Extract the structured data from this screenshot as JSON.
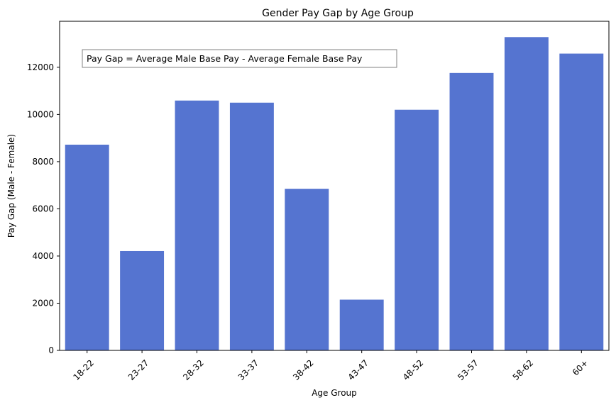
{
  "chart_data": {
    "type": "bar",
    "title": "Gender Pay Gap by Age Group",
    "xlabel": "Age Group",
    "ylabel": "Pay Gap (Male - Female)",
    "categories": [
      "18-22",
      "23-27",
      "28-32",
      "33-37",
      "38-42",
      "43-47",
      "48-52",
      "53-57",
      "58-62",
      "60+"
    ],
    "values": [
      8720,
      4210,
      10590,
      10500,
      6850,
      2150,
      10200,
      11760,
      13280,
      12580
    ],
    "ylim": [
      0,
      13950
    ],
    "yticks": [
      0,
      2000,
      4000,
      6000,
      8000,
      10000,
      12000
    ],
    "bar_color": "#5574d0",
    "annotation": "Pay Gap = Average Male Base Pay - Average Female Base Pay",
    "grid": false,
    "legend": "none"
  }
}
